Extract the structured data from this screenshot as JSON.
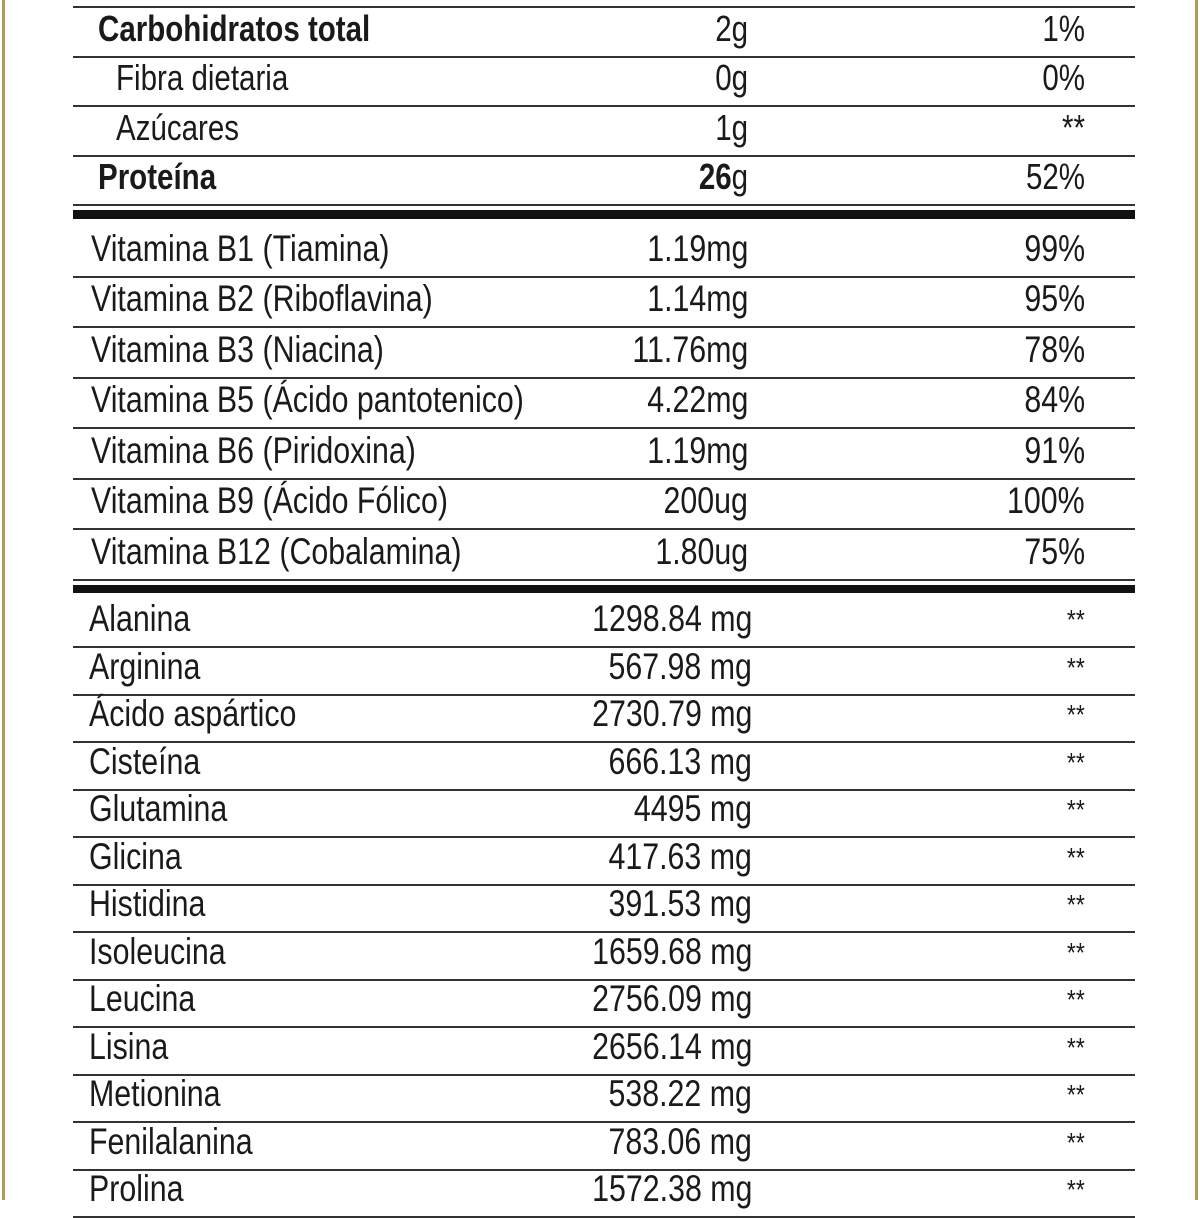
{
  "colors": {
    "border": "#b39a5a",
    "text": "#1a1a1a"
  },
  "macros": [
    {
      "label": "Carbohidratos total",
      "amount": "2g",
      "dv": "1%",
      "bold": true
    },
    {
      "label": "Fibra dietaria",
      "amount": "0g",
      "dv": "0%",
      "sub": true
    },
    {
      "label": "Azúcares",
      "amount": "1g",
      "dv": "**",
      "sub": true
    },
    {
      "label": "Proteína",
      "amount_bold": "26",
      "amount": "g",
      "dv": "52%",
      "bold": true
    }
  ],
  "vitamins": [
    {
      "label": "Vitamina B1 (Tiamina)",
      "amount": "1.19mg",
      "dv": "99%"
    },
    {
      "label": "Vitamina B2 (Riboflavina)",
      "amount": "1.14mg",
      "dv": "95%"
    },
    {
      "label": "Vitamina B3 (Niacina)",
      "amount": "11.76mg",
      "dv": "78%"
    },
    {
      "label": "Vitamina B5 (Ácido pantotenico)",
      "amount": "4.22mg",
      "dv": "84%"
    },
    {
      "label": "Vitamina B6 (Piridoxina)",
      "amount": "1.19mg",
      "dv": "91%"
    },
    {
      "label": "Vitamina B9 (Ácido Fólico)",
      "amount": "200ug",
      "dv": "100%"
    },
    {
      "label": "Vitamina B12 (Cobalamina)",
      "amount": "1.80ug",
      "dv": "75%"
    }
  ],
  "amino_acids": [
    {
      "label": "Alanina",
      "amount": "1298.84 mg",
      "dv": "**"
    },
    {
      "label": "Arginina",
      "amount": "567.98 mg",
      "dv": "**"
    },
    {
      "label": "Ácido aspártico",
      "amount": "2730.79 mg",
      "dv": "**"
    },
    {
      "label": "Cisteína",
      "amount": "666.13 mg",
      "dv": "**"
    },
    {
      "label": "Glutamina",
      "amount": "4495 mg",
      "dv": "**"
    },
    {
      "label": "Glicina",
      "amount": "417.63 mg",
      "dv": "**"
    },
    {
      "label": "Histidina",
      "amount": "391.53 mg",
      "dv": "**"
    },
    {
      "label": "Isoleucina",
      "amount": "1659.68 mg",
      "dv": "**"
    },
    {
      "label": "Leucina",
      "amount": "2756.09 mg",
      "dv": "**"
    },
    {
      "label": "Lisina",
      "amount": "2656.14 mg",
      "dv": "**"
    },
    {
      "label": "Metionina",
      "amount": "538.22 mg",
      "dv": "**"
    },
    {
      "label": "Fenilalanina",
      "amount": "783.06 mg",
      "dv": "**"
    },
    {
      "label": "Prolina",
      "amount": "1572.38 mg",
      "dv": "**"
    }
  ]
}
